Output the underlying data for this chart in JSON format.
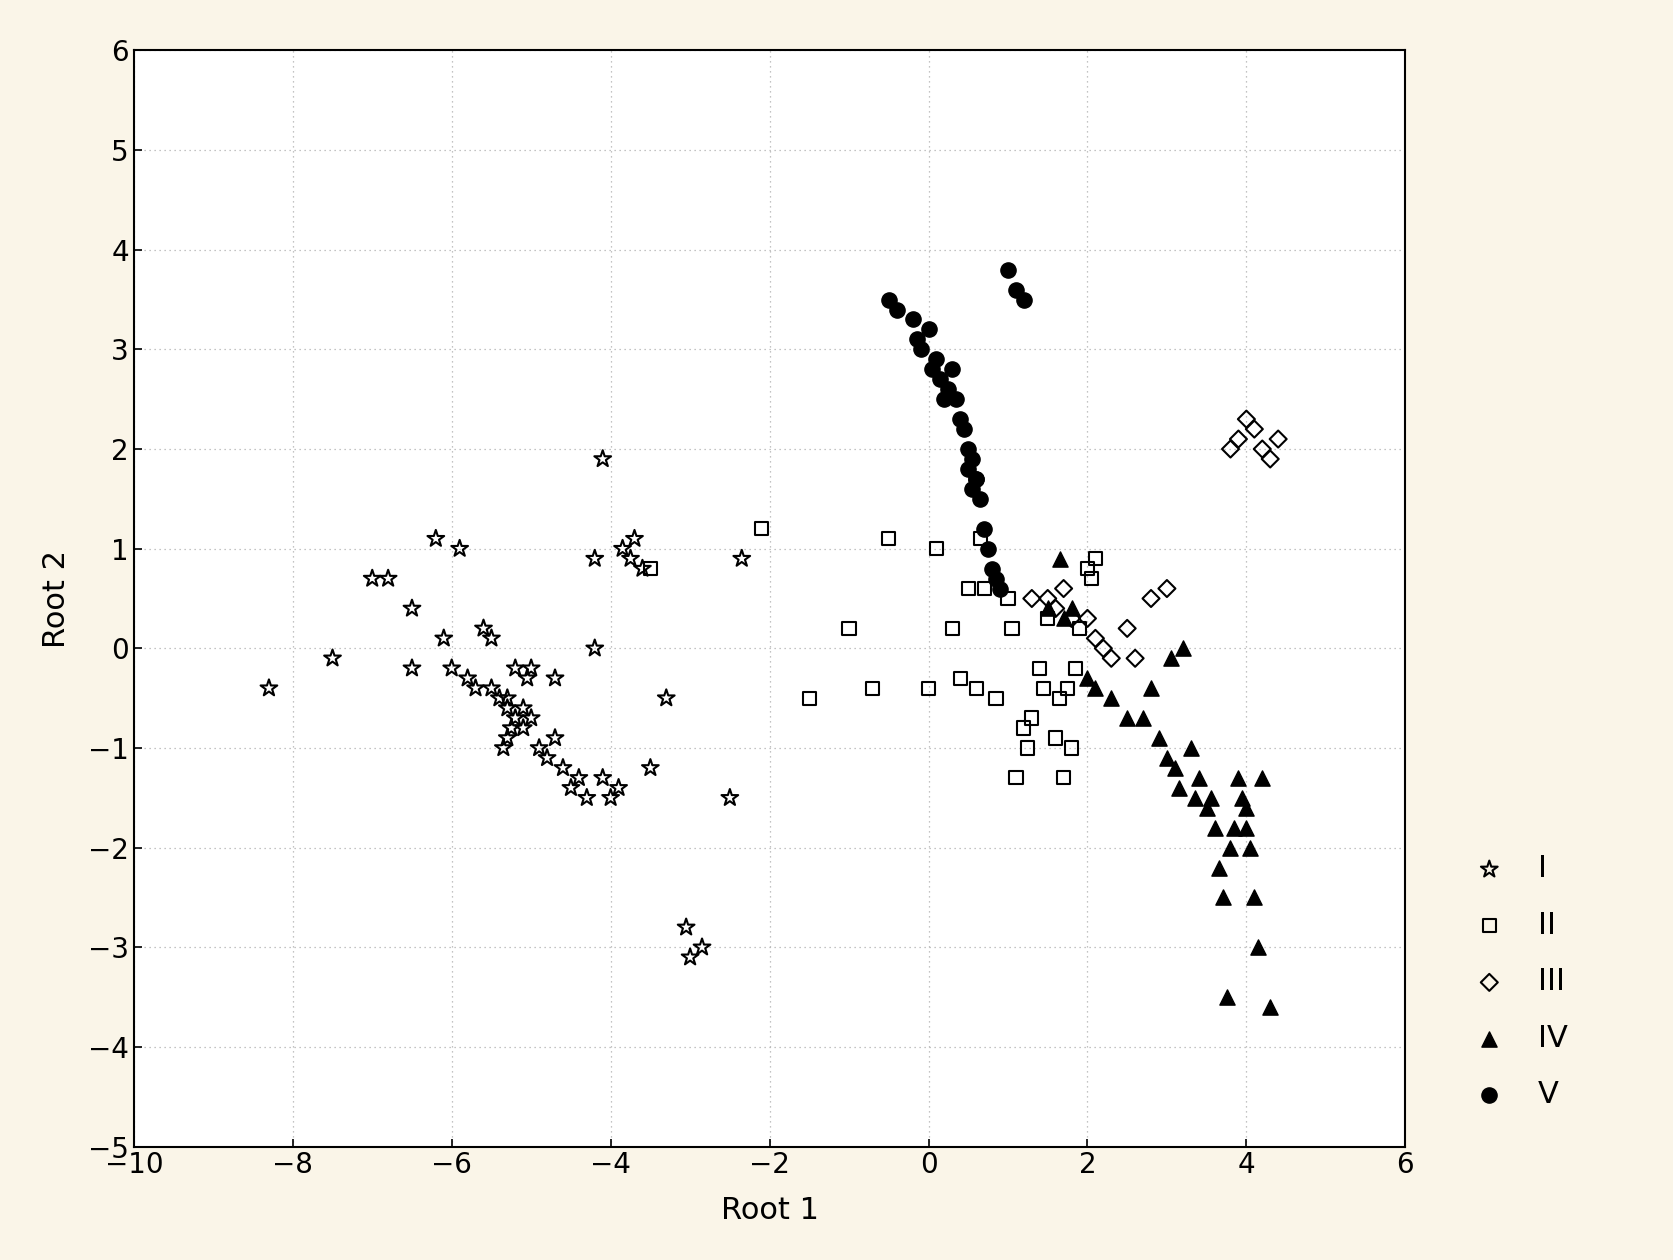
{
  "background_color": "#faf5e8",
  "plot_bg": "#ffffff",
  "xlim": [
    -10,
    6
  ],
  "ylim": [
    -5,
    6
  ],
  "xticks": [
    -10,
    -8,
    -6,
    -4,
    -2,
    0,
    2,
    4,
    6
  ],
  "yticks": [
    -5,
    -4,
    -3,
    -2,
    -1,
    0,
    1,
    2,
    3,
    4,
    5,
    6
  ],
  "xlabel": "Root 1",
  "ylabel": "Root 2",
  "grid_color": "#b0b0b0",
  "groups": {
    "I": {
      "x": [
        -8.3,
        -7.5,
        -7.0,
        -6.8,
        -6.5,
        -6.5,
        -6.2,
        -6.1,
        -6.0,
        -5.9,
        -5.8,
        -5.7,
        -5.6,
        -5.5,
        -5.5,
        -5.4,
        -5.3,
        -5.3,
        -5.2,
        -5.1,
        -5.0,
        -5.0,
        -4.9,
        -4.8,
        -4.7,
        -4.7,
        -4.6,
        -4.5,
        -4.4,
        -4.3,
        -4.2,
        -4.1,
        -4.0,
        -3.9,
        -3.85,
        -3.6,
        -3.5,
        -3.3,
        -3.0,
        -2.85,
        -2.5,
        -2.35,
        -3.05,
        -4.2,
        -4.1,
        -3.7,
        -3.75,
        -5.05,
        -5.1,
        -5.2,
        -5.25,
        -5.3,
        -5.35
      ],
      "y": [
        -0.4,
        -0.1,
        0.7,
        0.7,
        0.4,
        -0.2,
        1.1,
        0.1,
        -0.2,
        1.0,
        -0.3,
        -0.4,
        0.2,
        -0.4,
        0.1,
        -0.5,
        -0.5,
        -0.6,
        -0.2,
        -0.8,
        -0.7,
        -0.2,
        -1.0,
        -1.1,
        -0.9,
        -0.3,
        -1.2,
        -1.4,
        -1.3,
        -1.5,
        0.0,
        -1.3,
        -1.5,
        -1.4,
        1.0,
        0.8,
        -1.2,
        -0.5,
        -3.1,
        -3.0,
        -1.5,
        0.9,
        -2.8,
        0.9,
        1.9,
        1.1,
        0.9,
        -0.3,
        -0.6,
        -0.7,
        -0.8,
        -0.9,
        -1.0
      ]
    },
    "II": {
      "x": [
        -3.5,
        -2.1,
        -1.5,
        -1.0,
        -0.7,
        -0.5,
        0.0,
        0.1,
        0.3,
        0.4,
        0.5,
        0.6,
        0.65,
        0.7,
        0.85,
        1.0,
        1.05,
        1.1,
        1.2,
        1.25,
        1.3,
        1.4,
        1.45,
        1.5,
        1.6,
        1.65,
        1.7,
        1.75,
        1.8,
        1.85,
        1.9,
        2.0,
        2.05,
        2.1
      ],
      "y": [
        0.8,
        1.2,
        -0.5,
        0.2,
        -0.4,
        1.1,
        -0.4,
        1.0,
        0.2,
        -0.3,
        0.6,
        -0.4,
        1.1,
        0.6,
        -0.5,
        0.5,
        0.2,
        -1.3,
        -0.8,
        -1.0,
        -0.7,
        -0.2,
        -0.4,
        0.3,
        -0.9,
        -0.5,
        -1.3,
        -0.4,
        -1.0,
        -0.2,
        0.2,
        0.8,
        0.7,
        0.9
      ]
    },
    "III": {
      "x": [
        1.3,
        1.5,
        1.6,
        1.7,
        1.8,
        2.0,
        2.1,
        2.2,
        2.3,
        2.5,
        2.6,
        2.8,
        3.0,
        3.8,
        3.9,
        4.0,
        4.1,
        4.2,
        4.3,
        4.4
      ],
      "y": [
        0.5,
        0.5,
        0.4,
        0.6,
        0.3,
        0.3,
        0.1,
        0.0,
        -0.1,
        0.2,
        -0.1,
        0.5,
        0.6,
        2.0,
        2.1,
        2.3,
        2.2,
        2.0,
        1.9,
        2.1
      ]
    },
    "IV": {
      "x": [
        1.5,
        1.65,
        1.7,
        1.8,
        2.0,
        2.1,
        2.3,
        2.5,
        2.7,
        2.8,
        2.9,
        3.0,
        3.05,
        3.1,
        3.15,
        3.2,
        3.3,
        3.35,
        3.4,
        3.5,
        3.55,
        3.6,
        3.65,
        3.7,
        3.75,
        3.8,
        3.85,
        3.9,
        3.95,
        4.0,
        4.0,
        4.05,
        4.1,
        4.15,
        4.2,
        4.3
      ],
      "y": [
        0.4,
        0.9,
        0.3,
        0.4,
        -0.3,
        -0.4,
        -0.5,
        -0.7,
        -0.7,
        -0.4,
        -0.9,
        -1.1,
        -0.1,
        -1.2,
        -1.4,
        0.0,
        -1.0,
        -1.5,
        -1.3,
        -1.6,
        -1.5,
        -1.8,
        -2.2,
        -2.5,
        -3.5,
        -2.0,
        -1.8,
        -1.3,
        -1.5,
        -1.8,
        -1.6,
        -2.0,
        -2.5,
        -3.0,
        -1.3,
        -3.6
      ]
    },
    "V": {
      "x": [
        -0.5,
        -0.4,
        -0.2,
        -0.15,
        -0.1,
        0.0,
        0.05,
        0.1,
        0.15,
        0.2,
        0.25,
        0.3,
        0.35,
        0.4,
        0.45,
        0.5,
        0.5,
        0.55,
        0.6,
        0.65,
        0.7,
        0.75,
        0.8,
        0.85,
        0.9,
        1.0,
        1.1,
        1.2,
        0.55,
        0.6
      ],
      "y": [
        3.5,
        3.4,
        3.3,
        3.1,
        3.0,
        3.2,
        2.8,
        2.9,
        2.7,
        2.5,
        2.6,
        2.8,
        2.5,
        2.3,
        2.2,
        2.0,
        1.8,
        1.6,
        1.7,
        1.5,
        1.2,
        1.0,
        0.8,
        0.7,
        0.6,
        3.8,
        3.6,
        3.5,
        1.9,
        1.7
      ]
    }
  },
  "legend_order": [
    "I",
    "II",
    "III",
    "IV",
    "V"
  ]
}
